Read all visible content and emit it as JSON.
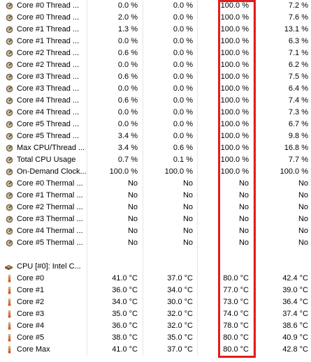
{
  "rows": [
    {
      "label": "Core #0 Thread ...",
      "icon": "gauge-icon",
      "v1": "0.0 %",
      "v2": "0.0 %",
      "v3": "100.0 %",
      "v4": "7.2 %"
    },
    {
      "label": "Core #0 Thread ...",
      "icon": "gauge-icon",
      "v1": "2.0 %",
      "v2": "0.0 %",
      "v3": "100.0 %",
      "v4": "7.6 %"
    },
    {
      "label": "Core #1 Thread ...",
      "icon": "gauge-icon",
      "v1": "1.3 %",
      "v2": "0.0 %",
      "v3": "100.0 %",
      "v4": "13.1 %"
    },
    {
      "label": "Core #1 Thread ...",
      "icon": "gauge-icon",
      "v1": "0.0 %",
      "v2": "0.0 %",
      "v3": "100.0 %",
      "v4": "6.3 %"
    },
    {
      "label": "Core #2 Thread ...",
      "icon": "gauge-icon",
      "v1": "0.6 %",
      "v2": "0.0 %",
      "v3": "100.0 %",
      "v4": "7.1 %"
    },
    {
      "label": "Core #2 Thread ...",
      "icon": "gauge-icon",
      "v1": "0.0 %",
      "v2": "0.0 %",
      "v3": "100.0 %",
      "v4": "6.2 %"
    },
    {
      "label": "Core #3 Thread ...",
      "icon": "gauge-icon",
      "v1": "0.6 %",
      "v2": "0.0 %",
      "v3": "100.0 %",
      "v4": "7.5 %"
    },
    {
      "label": "Core #3 Thread ...",
      "icon": "gauge-icon",
      "v1": "0.0 %",
      "v2": "0.0 %",
      "v3": "100.0 %",
      "v4": "6.4 %"
    },
    {
      "label": "Core #4 Thread ...",
      "icon": "gauge-icon",
      "v1": "0.6 %",
      "v2": "0.0 %",
      "v3": "100.0 %",
      "v4": "7.4 %"
    },
    {
      "label": "Core #4 Thread ...",
      "icon": "gauge-icon",
      "v1": "0.0 %",
      "v2": "0.0 %",
      "v3": "100.0 %",
      "v4": "7.3 %"
    },
    {
      "label": "Core #5 Thread ...",
      "icon": "gauge-icon",
      "v1": "0.0 %",
      "v2": "0.0 %",
      "v3": "100.0 %",
      "v4": "6.7 %"
    },
    {
      "label": "Core #5 Thread ...",
      "icon": "gauge-icon",
      "v1": "3.4 %",
      "v2": "0.0 %",
      "v3": "100.0 %",
      "v4": "9.8 %"
    },
    {
      "label": "Max CPU/Thread ...",
      "icon": "gauge-icon",
      "v1": "3.4 %",
      "v2": "0.6 %",
      "v3": "100.0 %",
      "v4": "16.8 %"
    },
    {
      "label": "Total CPU Usage",
      "icon": "gauge-icon",
      "v1": "0.7 %",
      "v2": "0.1 %",
      "v3": "100.0 %",
      "v4": "7.7 %"
    },
    {
      "label": "On-Demand Clock...",
      "icon": "gauge-icon",
      "v1": "100.0 %",
      "v2": "100.0 %",
      "v3": "100.0 %",
      "v4": "100.0 %"
    },
    {
      "label": "Core #0 Thermal ...",
      "icon": "gauge-icon",
      "v1": "No",
      "v2": "No",
      "v3": "No",
      "v4": "No"
    },
    {
      "label": "Core #1 Thermal ...",
      "icon": "gauge-icon",
      "v1": "No",
      "v2": "No",
      "v3": "No",
      "v4": "No"
    },
    {
      "label": "Core #2 Thermal ...",
      "icon": "gauge-icon",
      "v1": "No",
      "v2": "No",
      "v3": "No",
      "v4": "No"
    },
    {
      "label": "Core #3 Thermal ...",
      "icon": "gauge-icon",
      "v1": "No",
      "v2": "No",
      "v3": "No",
      "v4": "No"
    },
    {
      "label": "Core #4 Thermal ...",
      "icon": "gauge-icon",
      "v1": "No",
      "v2": "No",
      "v3": "No",
      "v4": "No"
    },
    {
      "label": "Core #5 Thermal ...",
      "icon": "gauge-icon",
      "v1": "No",
      "v2": "No",
      "v3": "No",
      "v4": "No"
    },
    {
      "label": "",
      "icon": "",
      "v1": "",
      "v2": "",
      "v3": "",
      "v4": ""
    },
    {
      "label": "CPU [#0]: Intel C...",
      "icon": "cpu-chip-icon",
      "v1": "",
      "v2": "",
      "v3": "",
      "v4": ""
    },
    {
      "label": "Core #0",
      "icon": "thermometer-icon",
      "v1": "41.0 °C",
      "v2": "37.0 °C",
      "v3": "80.0 °C",
      "v4": "42.4 °C"
    },
    {
      "label": "Core #1",
      "icon": "thermometer-icon",
      "v1": "36.0 °C",
      "v2": "34.0 °C",
      "v3": "77.0 °C",
      "v4": "39.0 °C"
    },
    {
      "label": "Core #2",
      "icon": "thermometer-icon",
      "v1": "34.0 °C",
      "v2": "30.0 °C",
      "v3": "73.0 °C",
      "v4": "36.4 °C"
    },
    {
      "label": "Core #3",
      "icon": "thermometer-icon",
      "v1": "35.0 °C",
      "v2": "32.0 °C",
      "v3": "74.0 °C",
      "v4": "37.4 °C"
    },
    {
      "label": "Core #4",
      "icon": "thermometer-icon",
      "v1": "36.0 °C",
      "v2": "32.0 °C",
      "v3": "78.0 °C",
      "v4": "38.6 °C"
    },
    {
      "label": "Core #5",
      "icon": "thermometer-icon",
      "v1": "38.0 °C",
      "v2": "35.0 °C",
      "v3": "80.0 °C",
      "v4": "40.9 °C"
    },
    {
      "label": "Core Max",
      "icon": "thermometer-icon",
      "v1": "41.0 °C",
      "v2": "37.0 °C",
      "v3": "80.0 °C",
      "v4": "42.8 °C"
    }
  ],
  "colors": {
    "highlight": "#e31c1c",
    "gridline": "#e6e6e6",
    "gauge": "#7a6a4f",
    "thermo": "#d08f56"
  }
}
